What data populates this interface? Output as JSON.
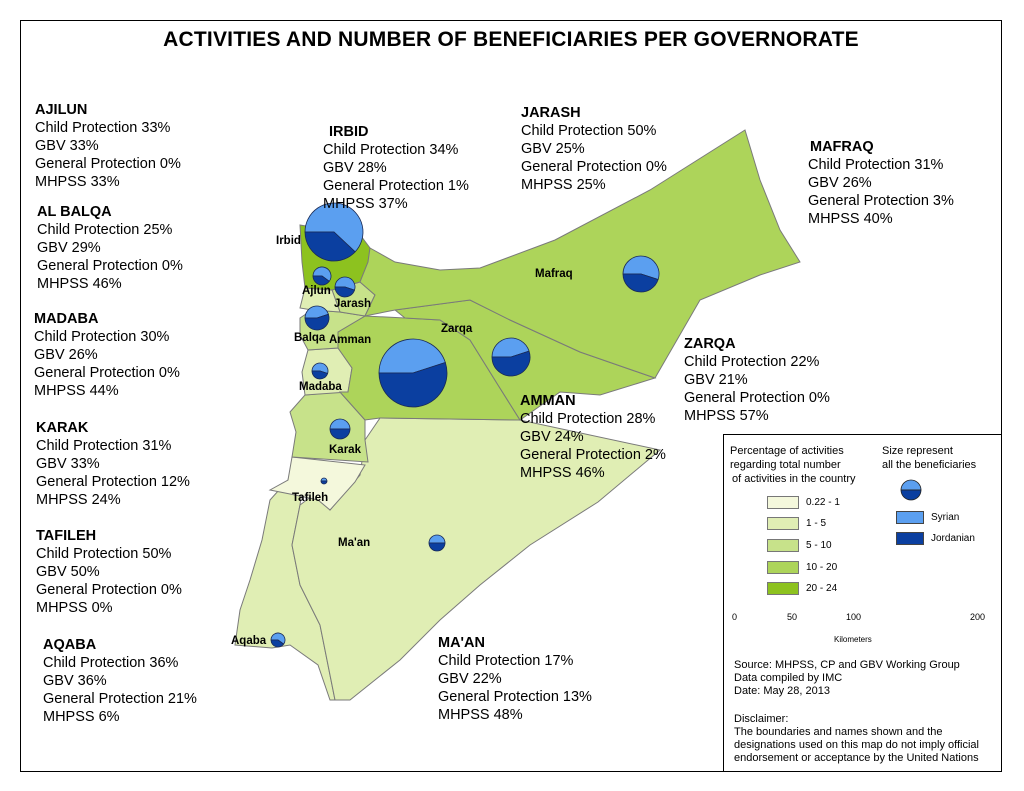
{
  "title": "ACTIVITIES AND NUMBER OF BENEFICIARIES PER GOVERNORATE",
  "governorates": {
    "ajilun": {
      "name": "AJILUN",
      "label": "Ajlun",
      "cp": "Child Protection 33%",
      "gbv": "GBV  33%",
      "gp": "General Protection 0%",
      "mhpss": "MHPSS 33%"
    },
    "irbid": {
      "name": "IRBID",
      "label": "Irbid",
      "cp": "Child Protection 34%",
      "gbv": "GBV  28%",
      "gp": "General Protection 1%",
      "mhpss": "MHPSS 37%"
    },
    "jarash": {
      "name": "JARASH",
      "label": "Jarash",
      "cp": "Child Protection 50%",
      "gbv": "GBV  25%",
      "gp": "General Protection 0%",
      "mhpss": "MHPSS 25%"
    },
    "mafraq": {
      "name": "MAFRAQ",
      "label": "Mafraq",
      "cp": "Child Protection 31%",
      "gbv": "GBV  26%",
      "gp": "General Protection 3%",
      "mhpss": "MHPSS 40%"
    },
    "albalqa": {
      "name": "AL BALQA",
      "label": "Balqa",
      "cp": "Child Protection 25%",
      "gbv": "GBV  29%",
      "gp": "General Protection 0%",
      "mhpss": "MHPSS 46%"
    },
    "madaba": {
      "name": "MADABA",
      "label": "Madaba",
      "cp": "Child Protection 30%",
      "gbv": "GBV  26%",
      "gp": "General Protection 0%",
      "mhpss": "MHPSS 44%"
    },
    "zarqa": {
      "name": "ZARQA",
      "label": "Zarqa",
      "cp": "Child Protection 22%",
      "gbv": "GBV  21%",
      "gp": "General Protection 0%",
      "mhpss": "MHPSS 57%"
    },
    "amman": {
      "name": "AMMAN",
      "label": "Amman",
      "cp": "Child Protection 28%",
      "gbv": "GBV  24%",
      "gp": "General Protection 2%",
      "mhpss": "MHPSS 46%"
    },
    "karak": {
      "name": "KARAK",
      "label": "Karak",
      "cp": "Child Protection 31%",
      "gbv": "GBV  33%",
      "gp": "General Protection 12%",
      "mhpss": "MHPSS 24%"
    },
    "tafileh": {
      "name": "TAFILEH",
      "label": "Tafileh",
      "cp": "Child Protection 50%",
      "gbv": "GBV  50%",
      "gp": "General Protection 0%",
      "mhpss": "MHPSS 0%"
    },
    "aqaba": {
      "name": "AQABA",
      "label": "Aqaba",
      "cp": "Child Protection 36%",
      "gbv": "GBV  36%",
      "gp": "General Protection 21%",
      "mhpss": "MHPSS 6%"
    },
    "maan": {
      "name": "MA'AN",
      "label": "Ma'an",
      "cp": "Child Protection 17%",
      "gbv": "GBV  22%",
      "gp": "General Protection 13%",
      "mhpss": "MHPSS 48%"
    }
  },
  "legend": {
    "pct_title_1": "Percentage of activities",
    "pct_title_2": "regarding total number",
    "pct_title_3": "of activities in the country",
    "size_title_1": "Size represent",
    "size_title_2": "all the beneficiaries",
    "classes": [
      {
        "label": "0.22 - 1",
        "color": "#f4f8dc"
      },
      {
        "label": "1 - 5",
        "color": "#e0eeb4"
      },
      {
        "label": "5 - 10",
        "color": "#c7e28a"
      },
      {
        "label": "10 - 20",
        "color": "#add45a"
      },
      {
        "label": "20 - 24",
        "color": "#8dc21f"
      }
    ],
    "series": [
      {
        "label": "Syrian",
        "color": "#5b9ff0"
      },
      {
        "label": "Jordanian",
        "color": "#0b3fa0"
      }
    ],
    "scale_ticks": [
      "0",
      "50",
      "100",
      "200"
    ],
    "scale_unit": "Kilometers",
    "source": "Source: MHPSS, CP and GBV Working Group",
    "compiled": "Data compiled by IMC",
    "date": "Date: May 28, 2013",
    "disclaimer_title": "Disclaimer:",
    "disclaimer_1": "The boundaries and names shown and the",
    "disclaimer_2": "designations used on this map do not imply official",
    "disclaimer_3": "endorsement or acceptance by the United Nations"
  }
}
